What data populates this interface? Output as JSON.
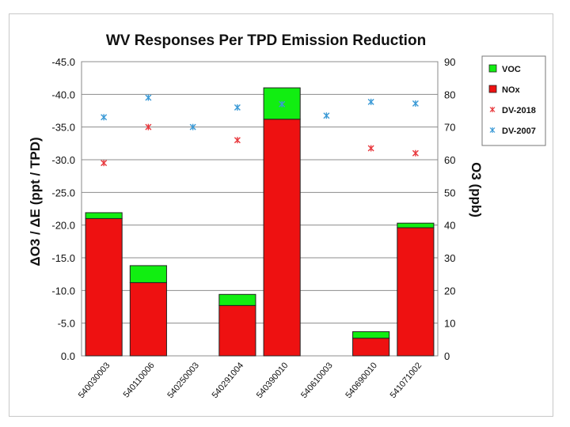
{
  "chart_data": {
    "type": "bar",
    "stacked": true,
    "title": "WV Responses Per TPD Emission Reduction",
    "ylabel_left": "ΔO3 / ΔE (ppt / TPD)",
    "ylabel_right": "O3 (ppb)",
    "ylim_left": [
      0,
      -45
    ],
    "ylim_right": [
      0,
      90
    ],
    "left_ticks": [
      "-45.0",
      "-40.0",
      "-35.0",
      "-30.0",
      "-25.0",
      "-20.0",
      "-15.0",
      "-10.0",
      "-5.0",
      "0.0"
    ],
    "right_ticks": [
      "90",
      "80",
      "70",
      "60",
      "50",
      "40",
      "30",
      "20",
      "10",
      "0"
    ],
    "categories": [
      "540030003",
      "540110006",
      "540250003",
      "540291004",
      "540390010",
      "540610003",
      "540690010",
      "541071002"
    ],
    "series": [
      {
        "name": "NOx",
        "kind": "bar",
        "axis": "left",
        "color": "#ee1111",
        "values": [
          -21.0,
          -11.2,
          0.0,
          -7.7,
          -36.2,
          0.0,
          -2.7,
          -19.6
        ]
      },
      {
        "name": "VOC",
        "kind": "bar",
        "axis": "left",
        "color": "#11ee11",
        "values": [
          -0.9,
          -2.6,
          0.0,
          -1.7,
          -4.8,
          0.0,
          -1.0,
          -0.7
        ]
      },
      {
        "name": "DV-2018",
        "kind": "marker",
        "axis": "right",
        "color": "#e8383d",
        "values": [
          59,
          70,
          null,
          66,
          null,
          null,
          63.5,
          62
        ]
      },
      {
        "name": "DV-2007",
        "kind": "marker",
        "axis": "right",
        "color": "#3b9ad6",
        "values": [
          73,
          79,
          70,
          76,
          77,
          73.5,
          77.7,
          77.2
        ]
      }
    ],
    "legend": [
      "VOC",
      "NOx",
      "DV-2018",
      "DV-2007"
    ],
    "legend_position": "right",
    "grid": true
  }
}
